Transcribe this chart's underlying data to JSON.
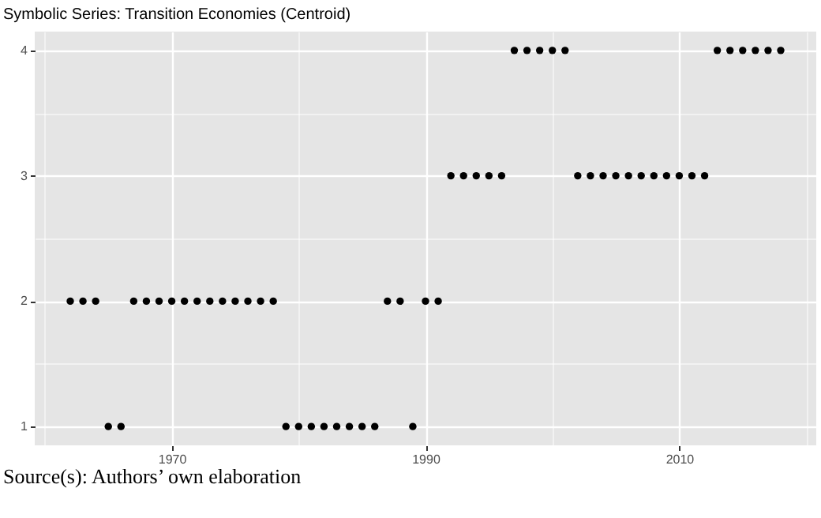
{
  "chart_data": {
    "type": "scatter",
    "title": "Symbolic Series: Transition Economies (Centroid)",
    "x": [
      1962,
      1963,
      1964,
      1965,
      1966,
      1967,
      1968,
      1969,
      1970,
      1971,
      1972,
      1973,
      1974,
      1975,
      1976,
      1977,
      1978,
      1979,
      1980,
      1981,
      1982,
      1983,
      1984,
      1985,
      1986,
      1987,
      1988,
      1989,
      1990,
      1991,
      1992,
      1993,
      1994,
      1995,
      1996,
      1997,
      1998,
      1999,
      2000,
      2001,
      2002,
      2003,
      2004,
      2005,
      2006,
      2007,
      2008,
      2009,
      2010,
      2011,
      2012,
      2013,
      2014,
      2015,
      2016,
      2017,
      2018
    ],
    "values": [
      2,
      2,
      2,
      1,
      1,
      2,
      2,
      2,
      2,
      2,
      2,
      2,
      2,
      2,
      2,
      2,
      2,
      1,
      1,
      1,
      1,
      1,
      1,
      1,
      1,
      2,
      2,
      1,
      2,
      2,
      3,
      3,
      3,
      3,
      3,
      4,
      4,
      4,
      4,
      4,
      3,
      3,
      3,
      3,
      3,
      3,
      3,
      3,
      3,
      3,
      3,
      4,
      4,
      4,
      4,
      4,
      4
    ],
    "color": "#000000",
    "marker": "circle",
    "xlim": [
      1959.2,
      2020.8
    ],
    "ylim": [
      0.85,
      4.15
    ],
    "xticks": [
      {
        "value": 1960,
        "label": null
      },
      1970,
      {
        "value": 1980,
        "label": null
      },
      1990,
      {
        "value": 2000,
        "label": null
      },
      2010,
      {
        "value": 2020,
        "label": null
      }
    ],
    "yticks": [
      1,
      {
        "value": 1.5,
        "label": null
      },
      2,
      {
        "value": 2.5,
        "label": null
      },
      3,
      {
        "value": 3.5,
        "label": null
      },
      4
    ],
    "grid": true,
    "annotations": [
      "Source(s): Authors’ own elaboration"
    ]
  }
}
